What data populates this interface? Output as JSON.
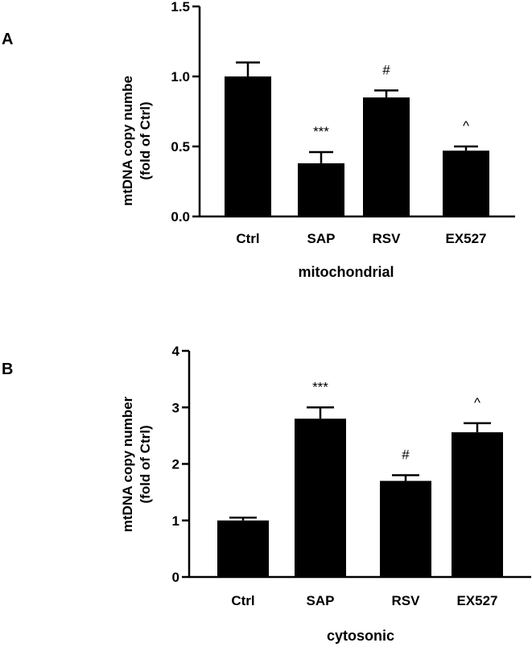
{
  "chart_data": [
    {
      "type": "bar",
      "panel": "A",
      "categories": [
        "Ctrl",
        "SAP",
        "RSV",
        "EX527"
      ],
      "values": [
        1.0,
        0.38,
        0.85,
        0.47
      ],
      "errors": [
        0.1,
        0.08,
        0.05,
        0.03
      ],
      "annotations": [
        "",
        "***",
        "#",
        "^"
      ],
      "ylabel_line1": "mtDNA copy numbe",
      "ylabel_line2": "(fold of Ctrl)",
      "xlabel": "mitochondrial",
      "ylim": [
        0,
        1.5
      ],
      "yticks": [
        0.0,
        0.5,
        1.0,
        1.5
      ],
      "ytick_labels": [
        "0.0",
        "0.5",
        "1.0",
        "1.5"
      ],
      "bar_color": "#000000"
    },
    {
      "type": "bar",
      "panel": "B",
      "categories": [
        "Ctrl",
        "SAP",
        "RSV",
        "EX527"
      ],
      "values": [
        1.0,
        2.8,
        1.7,
        2.56
      ],
      "errors": [
        0.05,
        0.2,
        0.1,
        0.16
      ],
      "annotations": [
        "",
        "***",
        "#",
        "^"
      ],
      "ylabel_line1": "mtDNA copy number",
      "ylabel_line2": "(fold of Ctrl)",
      "xlabel": "cytosonic",
      "ylim": [
        0,
        4
      ],
      "yticks": [
        0,
        1,
        2,
        3,
        4
      ],
      "ytick_labels": [
        "0",
        "1",
        "2",
        "3",
        "4"
      ],
      "bar_color": "#000000"
    }
  ]
}
